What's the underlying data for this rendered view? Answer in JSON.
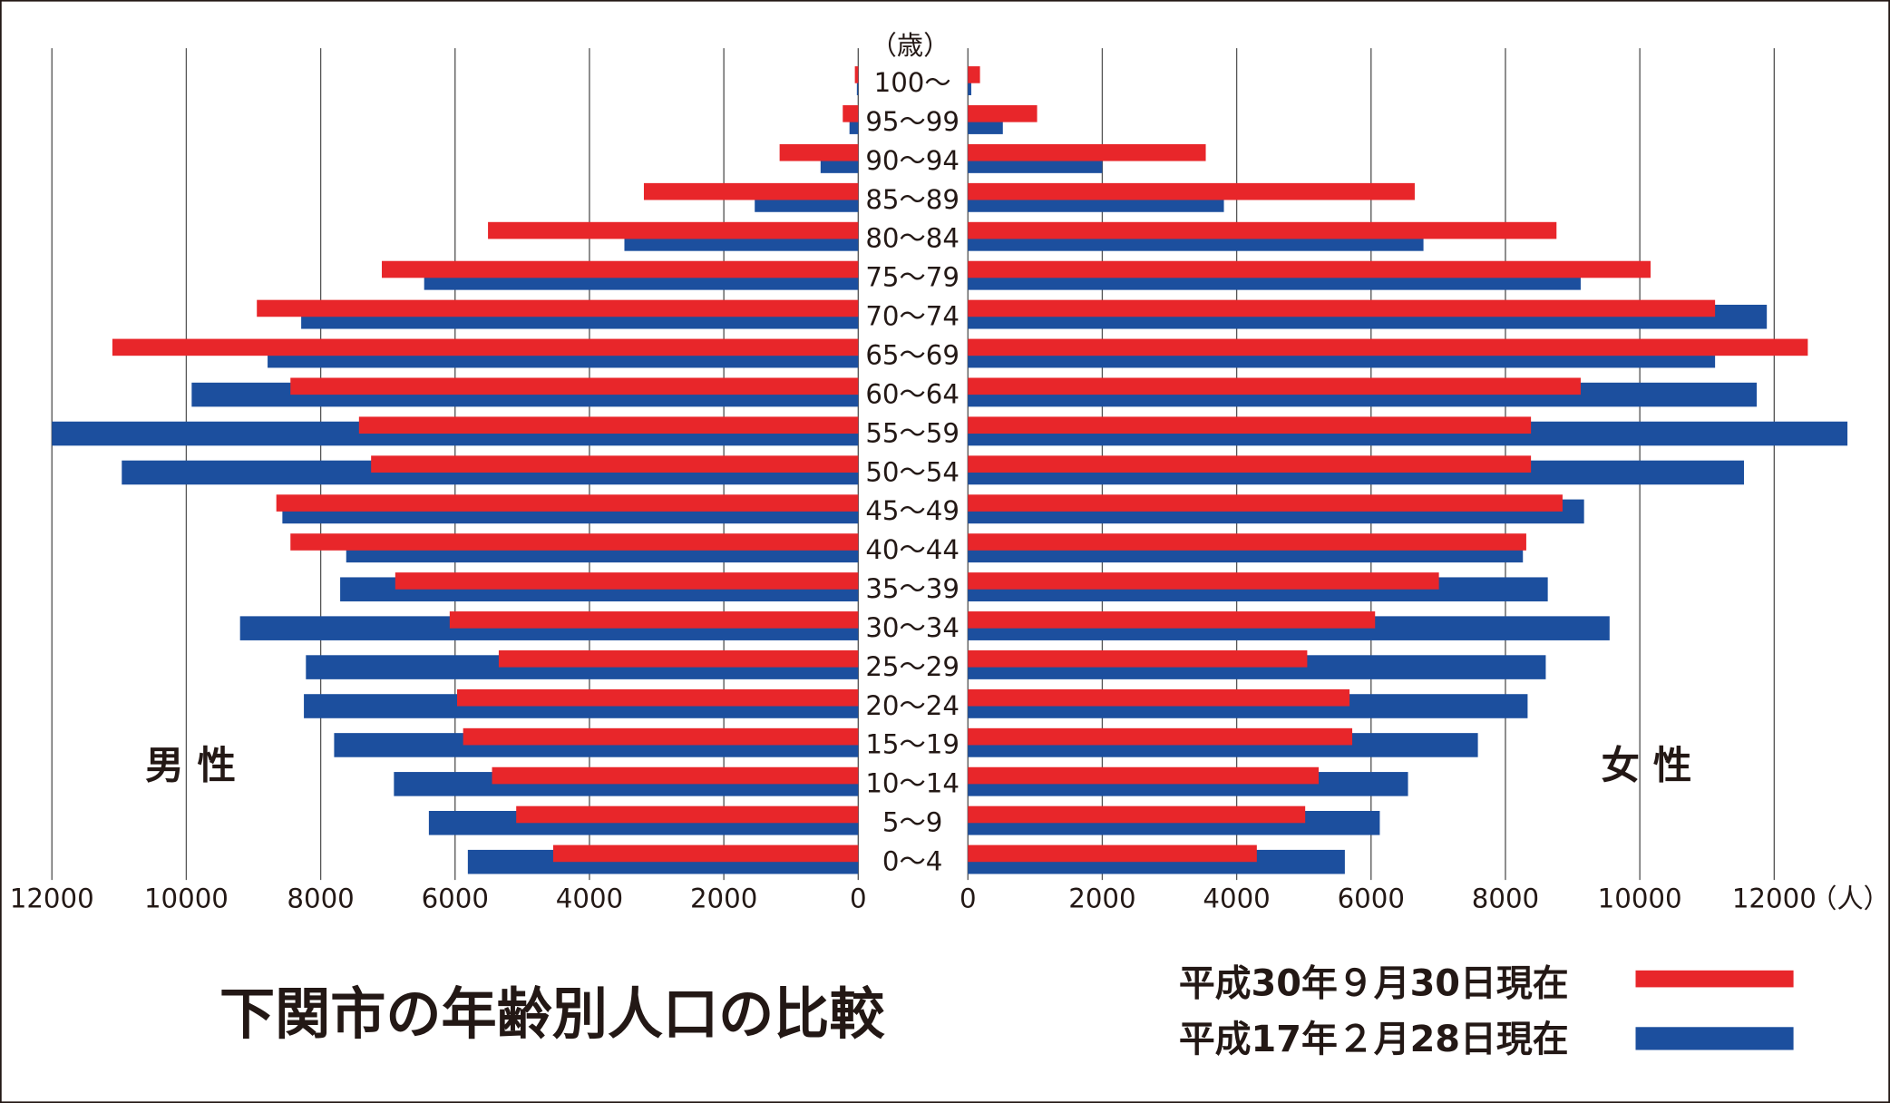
{
  "chart_data": {
    "type": "bar",
    "orientation": "horizontal-population-pyramid",
    "title": "下関市の年齢別人口の比較",
    "age_unit_label": "（歳）",
    "value_unit_label": "（人）",
    "left_side_label": "男 性",
    "right_side_label": "女 性",
    "categories": [
      "100～",
      "95～99",
      "90～94",
      "85～89",
      "80～84",
      "75～79",
      "70～74",
      "65～69",
      "60～64",
      "55～59",
      "50～54",
      "45～49",
      "40～44",
      "35～39",
      "30～34",
      "25～29",
      "20～24",
      "15～19",
      "10～14",
      "5～9",
      "0～4"
    ],
    "xlim": [
      0,
      12000
    ],
    "ticks": [
      "0",
      "2000",
      "4000",
      "6000",
      "8000",
      "10000",
      "12000"
    ],
    "tick_values": [
      0,
      2000,
      4000,
      6000,
      8000,
      10000,
      12000
    ],
    "grid": true,
    "legend_position": "bottom-right",
    "series": [
      {
        "name": "平成30年９月30日現在",
        "color": "#e8262a",
        "male": [
          50,
          230,
          1170,
          3190,
          5510,
          7090,
          8950,
          11100,
          8450,
          7430,
          7250,
          8660,
          8450,
          6890,
          6080,
          5350,
          5970,
          5880,
          5450,
          5090,
          4540
        ],
        "female": [
          180,
          1030,
          3540,
          6650,
          8760,
          10160,
          11120,
          12500,
          9120,
          8380,
          8380,
          8850,
          8310,
          7010,
          6060,
          5050,
          5680,
          5720,
          5220,
          5020,
          4300
        ]
      },
      {
        "name": "平成17年２月28日現在",
        "color": "#1c4f9e",
        "male": [
          20,
          130,
          560,
          1540,
          3480,
          6460,
          8290,
          8790,
          9920,
          12000,
          10960,
          8570,
          7620,
          7710,
          9200,
          8220,
          8250,
          7800,
          6910,
          6390,
          5810
        ],
        "female": [
          50,
          520,
          2000,
          3810,
          6780,
          9120,
          11890,
          11120,
          11740,
          13090,
          11550,
          9170,
          8260,
          8630,
          9550,
          8600,
          8330,
          7590,
          6550,
          6130,
          5610
        ]
      }
    ]
  }
}
